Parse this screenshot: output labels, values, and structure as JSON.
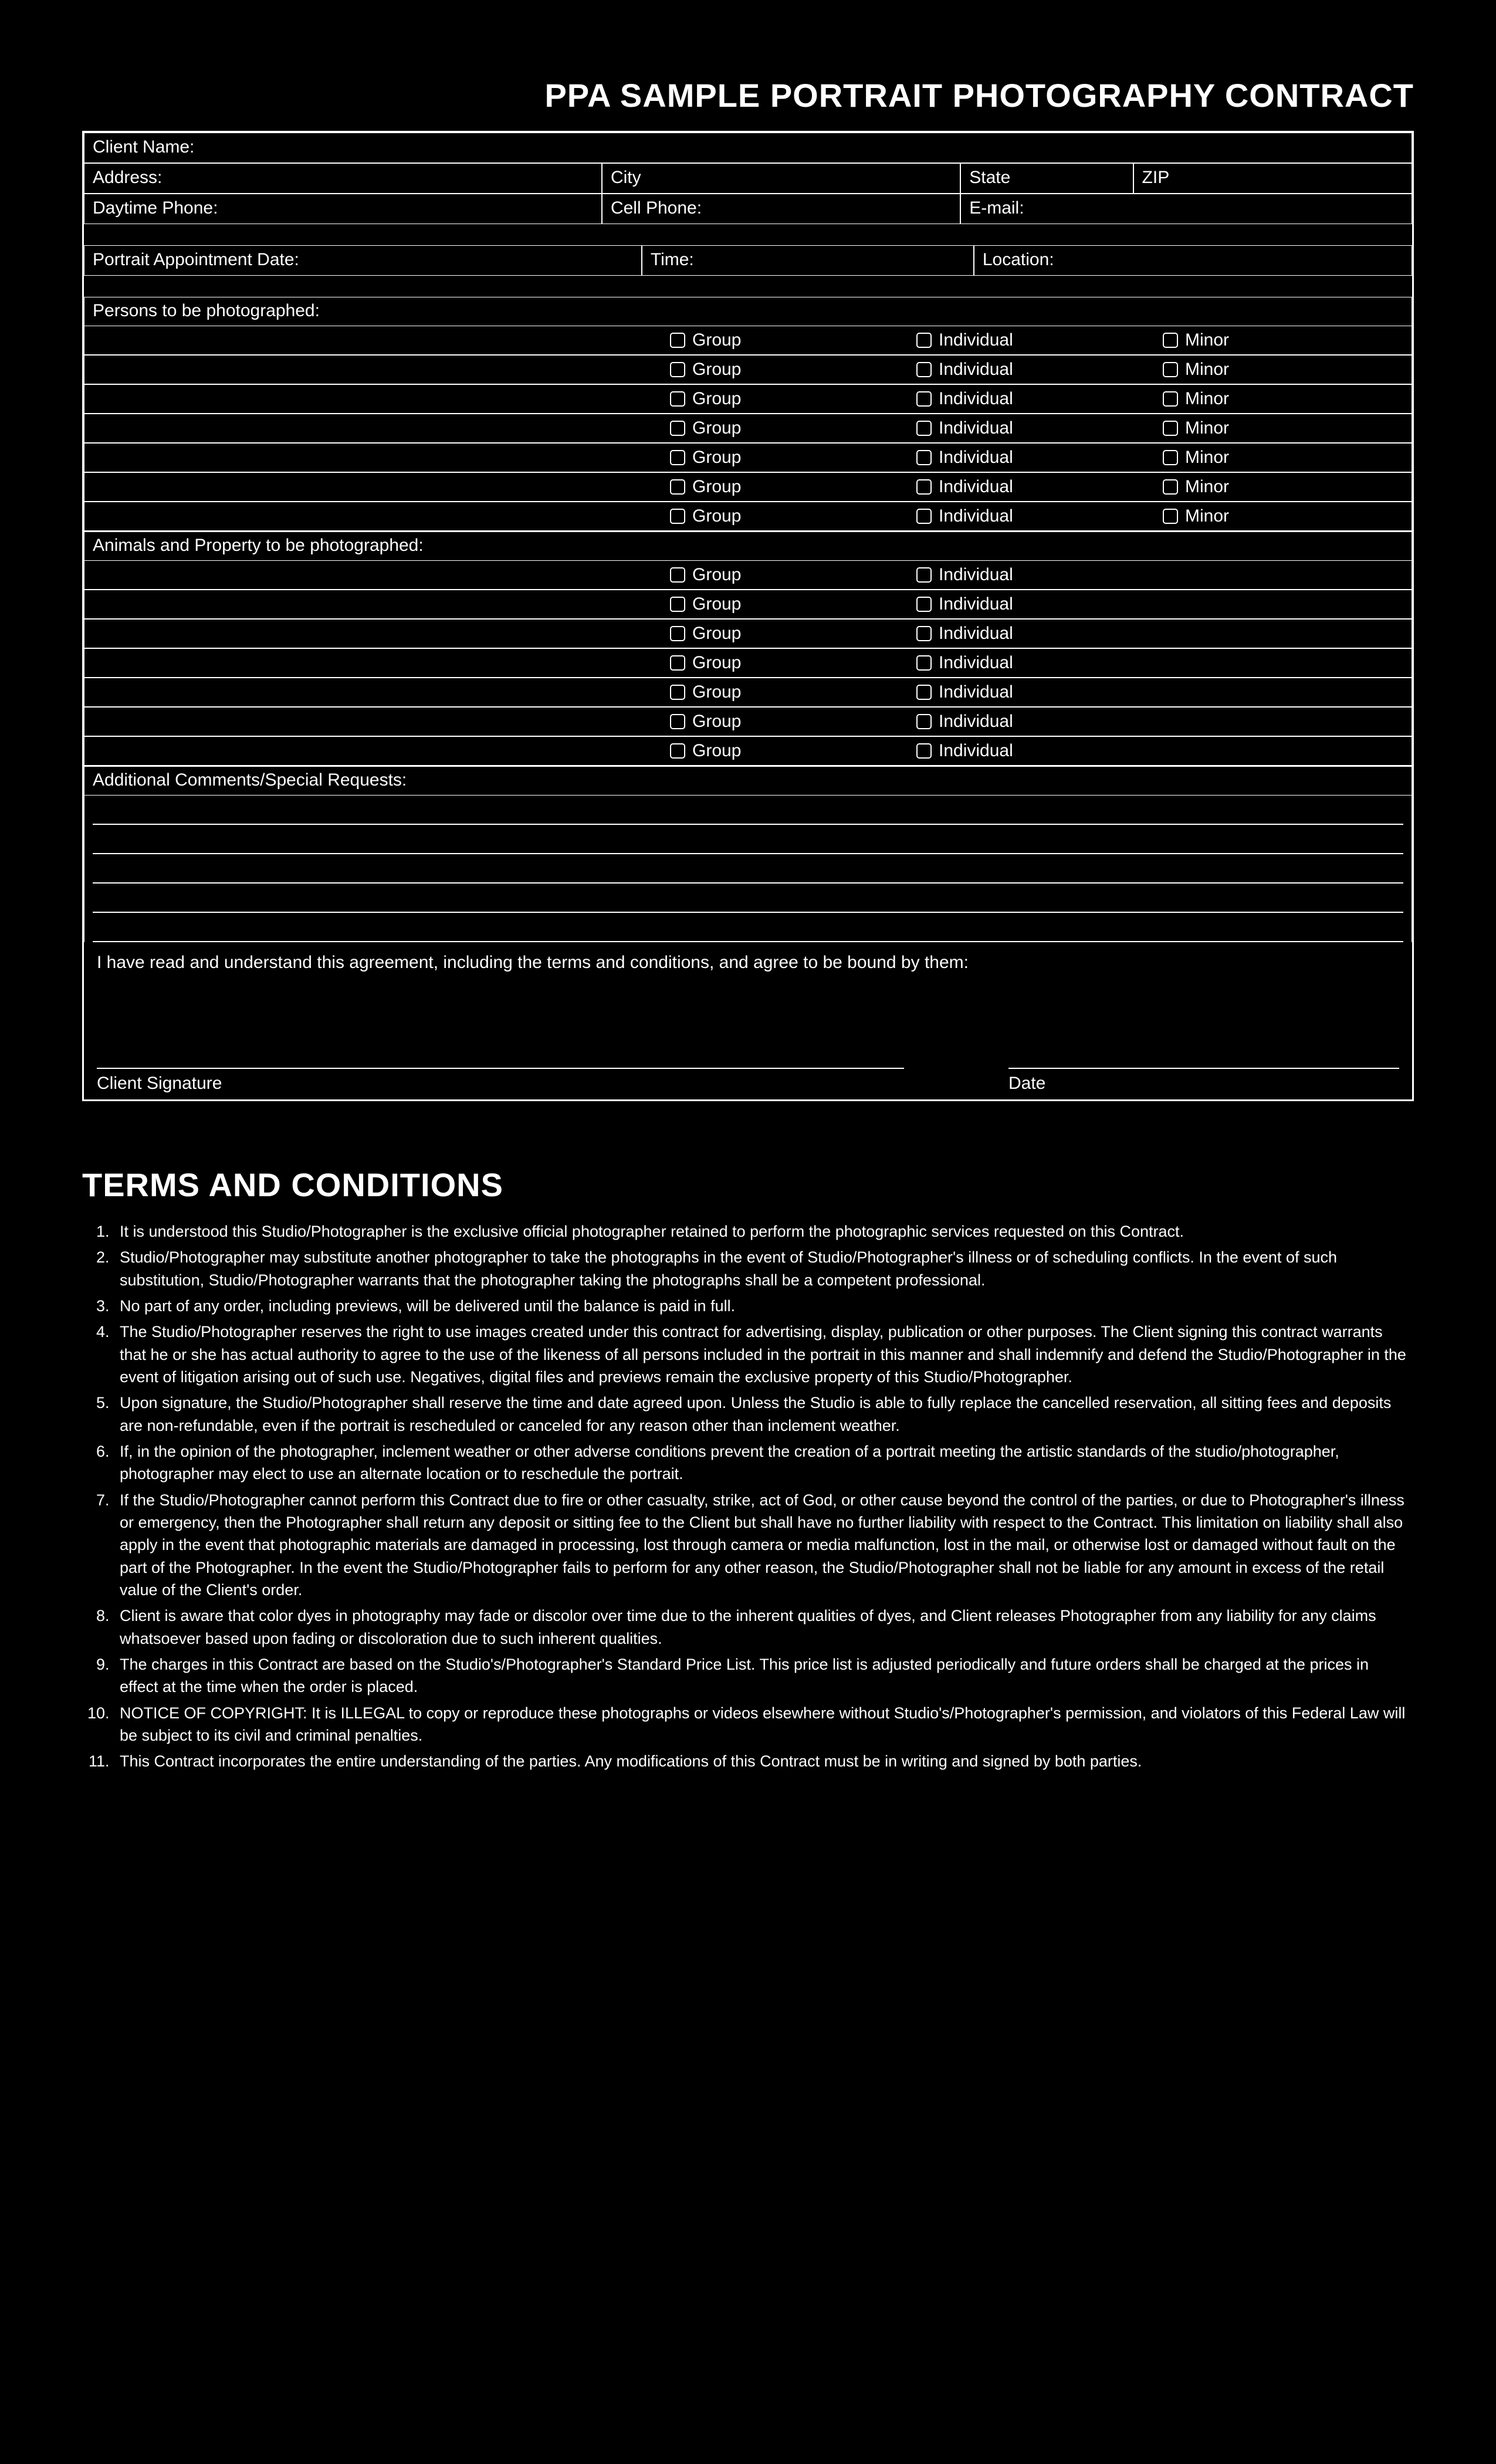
{
  "title": "PPA SAMPLE PORTRAIT PHOTOGRAPHY CONTRACT",
  "fields": {
    "clientName": "Client Name:",
    "address": "Address:",
    "city": "City",
    "state": "State",
    "zip": "ZIP",
    "daytimePhone": "Daytime Phone:",
    "cellPhone": "Cell Phone:",
    "email": "E-mail:",
    "apptDate": "Portrait Appointment Date:",
    "time": "Time:",
    "location": "Location:",
    "personsHeader": "Persons to be photographed:",
    "animalsHeader": "Animals and Property to be photographed:",
    "commentsHeader": "Additional Comments/Special Requests:",
    "group": "Group",
    "individual": "Individual",
    "minor": "Minor",
    "agreement": "I have read and understand this agreement, including the terms and conditions, and agree to be bound by them:",
    "clientSignature": "Client Signature",
    "date": "Date"
  },
  "personRows": 7,
  "animalRows": 7,
  "commentLines": 5,
  "termsTitle": "TERMS AND CONDITIONS",
  "terms": [
    "It is understood this Studio/Photographer is the exclusive official photographer retained to perform the photographic services requested on this Contract.",
    "Studio/Photographer may substitute another photographer to take the photographs in the event of Studio/Photographer's illness or of scheduling conflicts. In the event of such substitution, Studio/Photographer warrants that the photographer taking the photographs shall be a competent professional.",
    "No part of any order, including previews, will be delivered until the balance is paid in full.",
    "The Studio/Photographer reserves the right to use images created under this contract for advertising, display, publication or other purposes. The Client signing this contract warrants that he or she has actual authority to agree to the use of the likeness of all persons included in the portrait in this manner and shall indemnify and defend the Studio/Photographer in the event of litigation arising out of such use. Negatives, digital files and previews remain the exclusive property of this Studio/Photographer.",
    "Upon signature, the Studio/Photographer shall reserve the time and date agreed upon. Unless the Studio is able to fully replace the cancelled reservation, all sitting fees and deposits are non-refundable, even if the portrait is rescheduled or canceled for any reason other than inclement weather.",
    "If, in the opinion of the photographer, inclement weather or other adverse conditions prevent the creation of a portrait meeting the artistic standards of the studio/photographer, photographer may elect to use an alternate location or to reschedule the portrait.",
    "If the Studio/Photographer cannot perform this Contract due to fire or other casualty, strike, act of God, or other cause beyond the control of the parties, or due to Photographer's illness or emergency, then the Photographer shall return any deposit or sitting fee to the Client but shall have no further liability with respect to the Contract. This limitation on liability shall also apply in the event that photographic materials are damaged in processing, lost through camera or media malfunction, lost in the mail, or otherwise lost or damaged without fault on the part of the Photographer. In the event the Studio/Photographer fails to perform for any other reason, the Studio/Photographer shall not be liable for any amount in excess of the retail value of the Client's order.",
    "Client is aware that color dyes in photography may fade or discolor over time due to the inherent qualities of dyes, and Client releases Photographer from any liability for any claims whatsoever based upon fading or discoloration due to such inherent qualities.",
    "The charges in this Contract are based on the Studio's/Photographer's Standard Price List. This price list is adjusted periodically and future orders shall be charged at the prices in effect at the time when the order is placed.",
    "NOTICE OF COPYRIGHT: It is ILLEGAL to copy or reproduce these photographs or videos elsewhere without Studio's/Photographer's permission, and violators of this Federal Law will be subject to its civil and criminal penalties.",
    "This Contract incorporates the entire understanding of the parties. Any modifications of this Contract must be in writing and signed by both parties."
  ],
  "colors": {
    "bg": "#000000",
    "fg": "#ffffff"
  }
}
